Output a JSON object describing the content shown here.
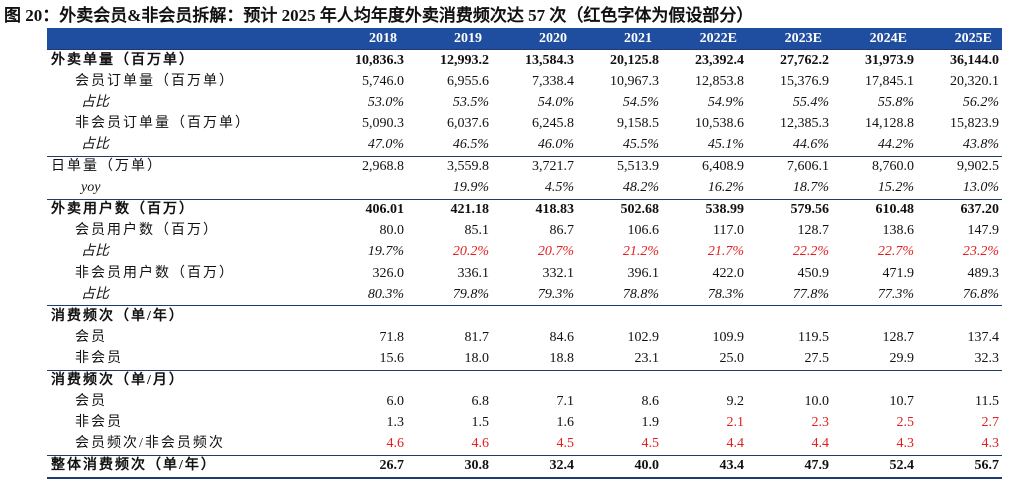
{
  "title": "图 20：外卖会员&非会员拆解：预计 2025 年人均年度外卖消费频次达 57 次（红色字体为假设部分）",
  "highlight_color": "#e02020",
  "table": {
    "header": [
      "2018",
      "2019",
      "2020",
      "2021",
      "2022E",
      "2023E",
      "2024E",
      "2025E"
    ],
    "rows": [
      {
        "label": "外卖单量（百万单）",
        "style": "bold",
        "values": [
          "10,836.3",
          "12,993.2",
          "13,584.3",
          "20,125.8",
          "23,392.4",
          "27,762.2",
          "31,973.9",
          "36,144.0"
        ]
      },
      {
        "label": "会员订单量（百万单）",
        "style": "indent",
        "values": [
          "5,746.0",
          "6,955.6",
          "7,338.4",
          "10,967.3",
          "12,853.8",
          "15,376.9",
          "17,845.1",
          "20,320.1"
        ]
      },
      {
        "label": "占比",
        "style": "italic",
        "values": [
          "53.0%",
          "53.5%",
          "54.0%",
          "54.5%",
          "54.9%",
          "55.4%",
          "55.8%",
          "56.2%"
        ]
      },
      {
        "label": "非会员订单量（百万单）",
        "style": "indent",
        "values": [
          "5,090.3",
          "6,037.6",
          "6,245.8",
          "9,158.5",
          "10,538.6",
          "12,385.3",
          "14,128.8",
          "15,823.9"
        ]
      },
      {
        "label": "占比",
        "style": "italic",
        "values": [
          "47.0%",
          "46.5%",
          "46.0%",
          "45.5%",
          "45.1%",
          "44.6%",
          "44.2%",
          "43.8%"
        ]
      },
      {
        "label": "日单量（万单）",
        "style": "top",
        "values": [
          "2,968.8",
          "3,559.8",
          "3,721.7",
          "5,513.9",
          "6,408.9",
          "7,606.1",
          "8,760.0",
          "9,902.5"
        ]
      },
      {
        "label": "yoy",
        "style": "italic",
        "values": [
          null,
          "19.9%",
          "4.5%",
          "48.2%",
          "16.2%",
          "18.7%",
          "15.2%",
          "13.0%"
        ]
      },
      {
        "label": "外卖用户数（百万）",
        "style": "bold",
        "values": [
          "406.01",
          "421.18",
          "418.83",
          "502.68",
          "538.99",
          "579.56",
          "610.48",
          "637.20"
        ]
      },
      {
        "label": "会员用户数（百万）",
        "style": "indent",
        "values": [
          "80.0",
          "85.1",
          "86.7",
          "106.6",
          "117.0",
          "128.7",
          "138.6",
          "147.9"
        ]
      },
      {
        "label": "占比",
        "style": "italic",
        "values": [
          "19.7%",
          "20.2%",
          "20.7%",
          "21.2%",
          "21.7%",
          "22.2%",
          "22.7%",
          "23.2%"
        ],
        "highlighted": [
          false,
          true,
          true,
          true,
          true,
          true,
          true,
          true
        ]
      },
      {
        "label": "非会员用户数（百万）",
        "style": "indent",
        "values": [
          "326.0",
          "336.1",
          "332.1",
          "396.1",
          "422.0",
          "450.9",
          "471.9",
          "489.3"
        ]
      },
      {
        "label": "占比",
        "style": "italic",
        "values": [
          "80.3%",
          "79.8%",
          "79.3%",
          "78.8%",
          "78.3%",
          "77.8%",
          "77.3%",
          "76.8%"
        ]
      },
      {
        "label": "消费频次（单/年）",
        "style": "section"
      },
      {
        "label": "会员",
        "style": "indent",
        "values": [
          "71.8",
          "81.7",
          "84.6",
          "102.9",
          "109.9",
          "119.5",
          "128.7",
          "137.4"
        ]
      },
      {
        "label": "非会员",
        "style": "indent",
        "values": [
          "15.6",
          "18.0",
          "18.8",
          "23.1",
          "25.0",
          "27.5",
          "29.9",
          "32.3"
        ]
      },
      {
        "label": "消费频次（单/月）",
        "style": "section"
      },
      {
        "label": "会员",
        "style": "indent",
        "values": [
          "6.0",
          "6.8",
          "7.1",
          "8.6",
          "9.2",
          "10.0",
          "10.7",
          "11.5"
        ]
      },
      {
        "label": "非会员",
        "style": "indent",
        "values": [
          "1.3",
          "1.5",
          "1.6",
          "1.9",
          "2.1",
          "2.3",
          "2.5",
          "2.7"
        ],
        "highlighted": [
          false,
          false,
          false,
          false,
          true,
          true,
          true,
          true
        ]
      },
      {
        "label": "会员频次/非会员频次",
        "style": "indent",
        "values": [
          "4.6",
          "4.6",
          "4.5",
          "4.5",
          "4.4",
          "4.4",
          "4.3",
          "4.3"
        ],
        "highlighted": [
          true,
          true,
          true,
          true,
          true,
          true,
          true,
          true
        ]
      },
      {
        "label": "整体消费频次（单/年）",
        "style": "total",
        "values": [
          "26.7",
          "30.8",
          "32.4",
          "40.0",
          "43.4",
          "47.9",
          "52.4",
          "56.7"
        ]
      }
    ]
  }
}
